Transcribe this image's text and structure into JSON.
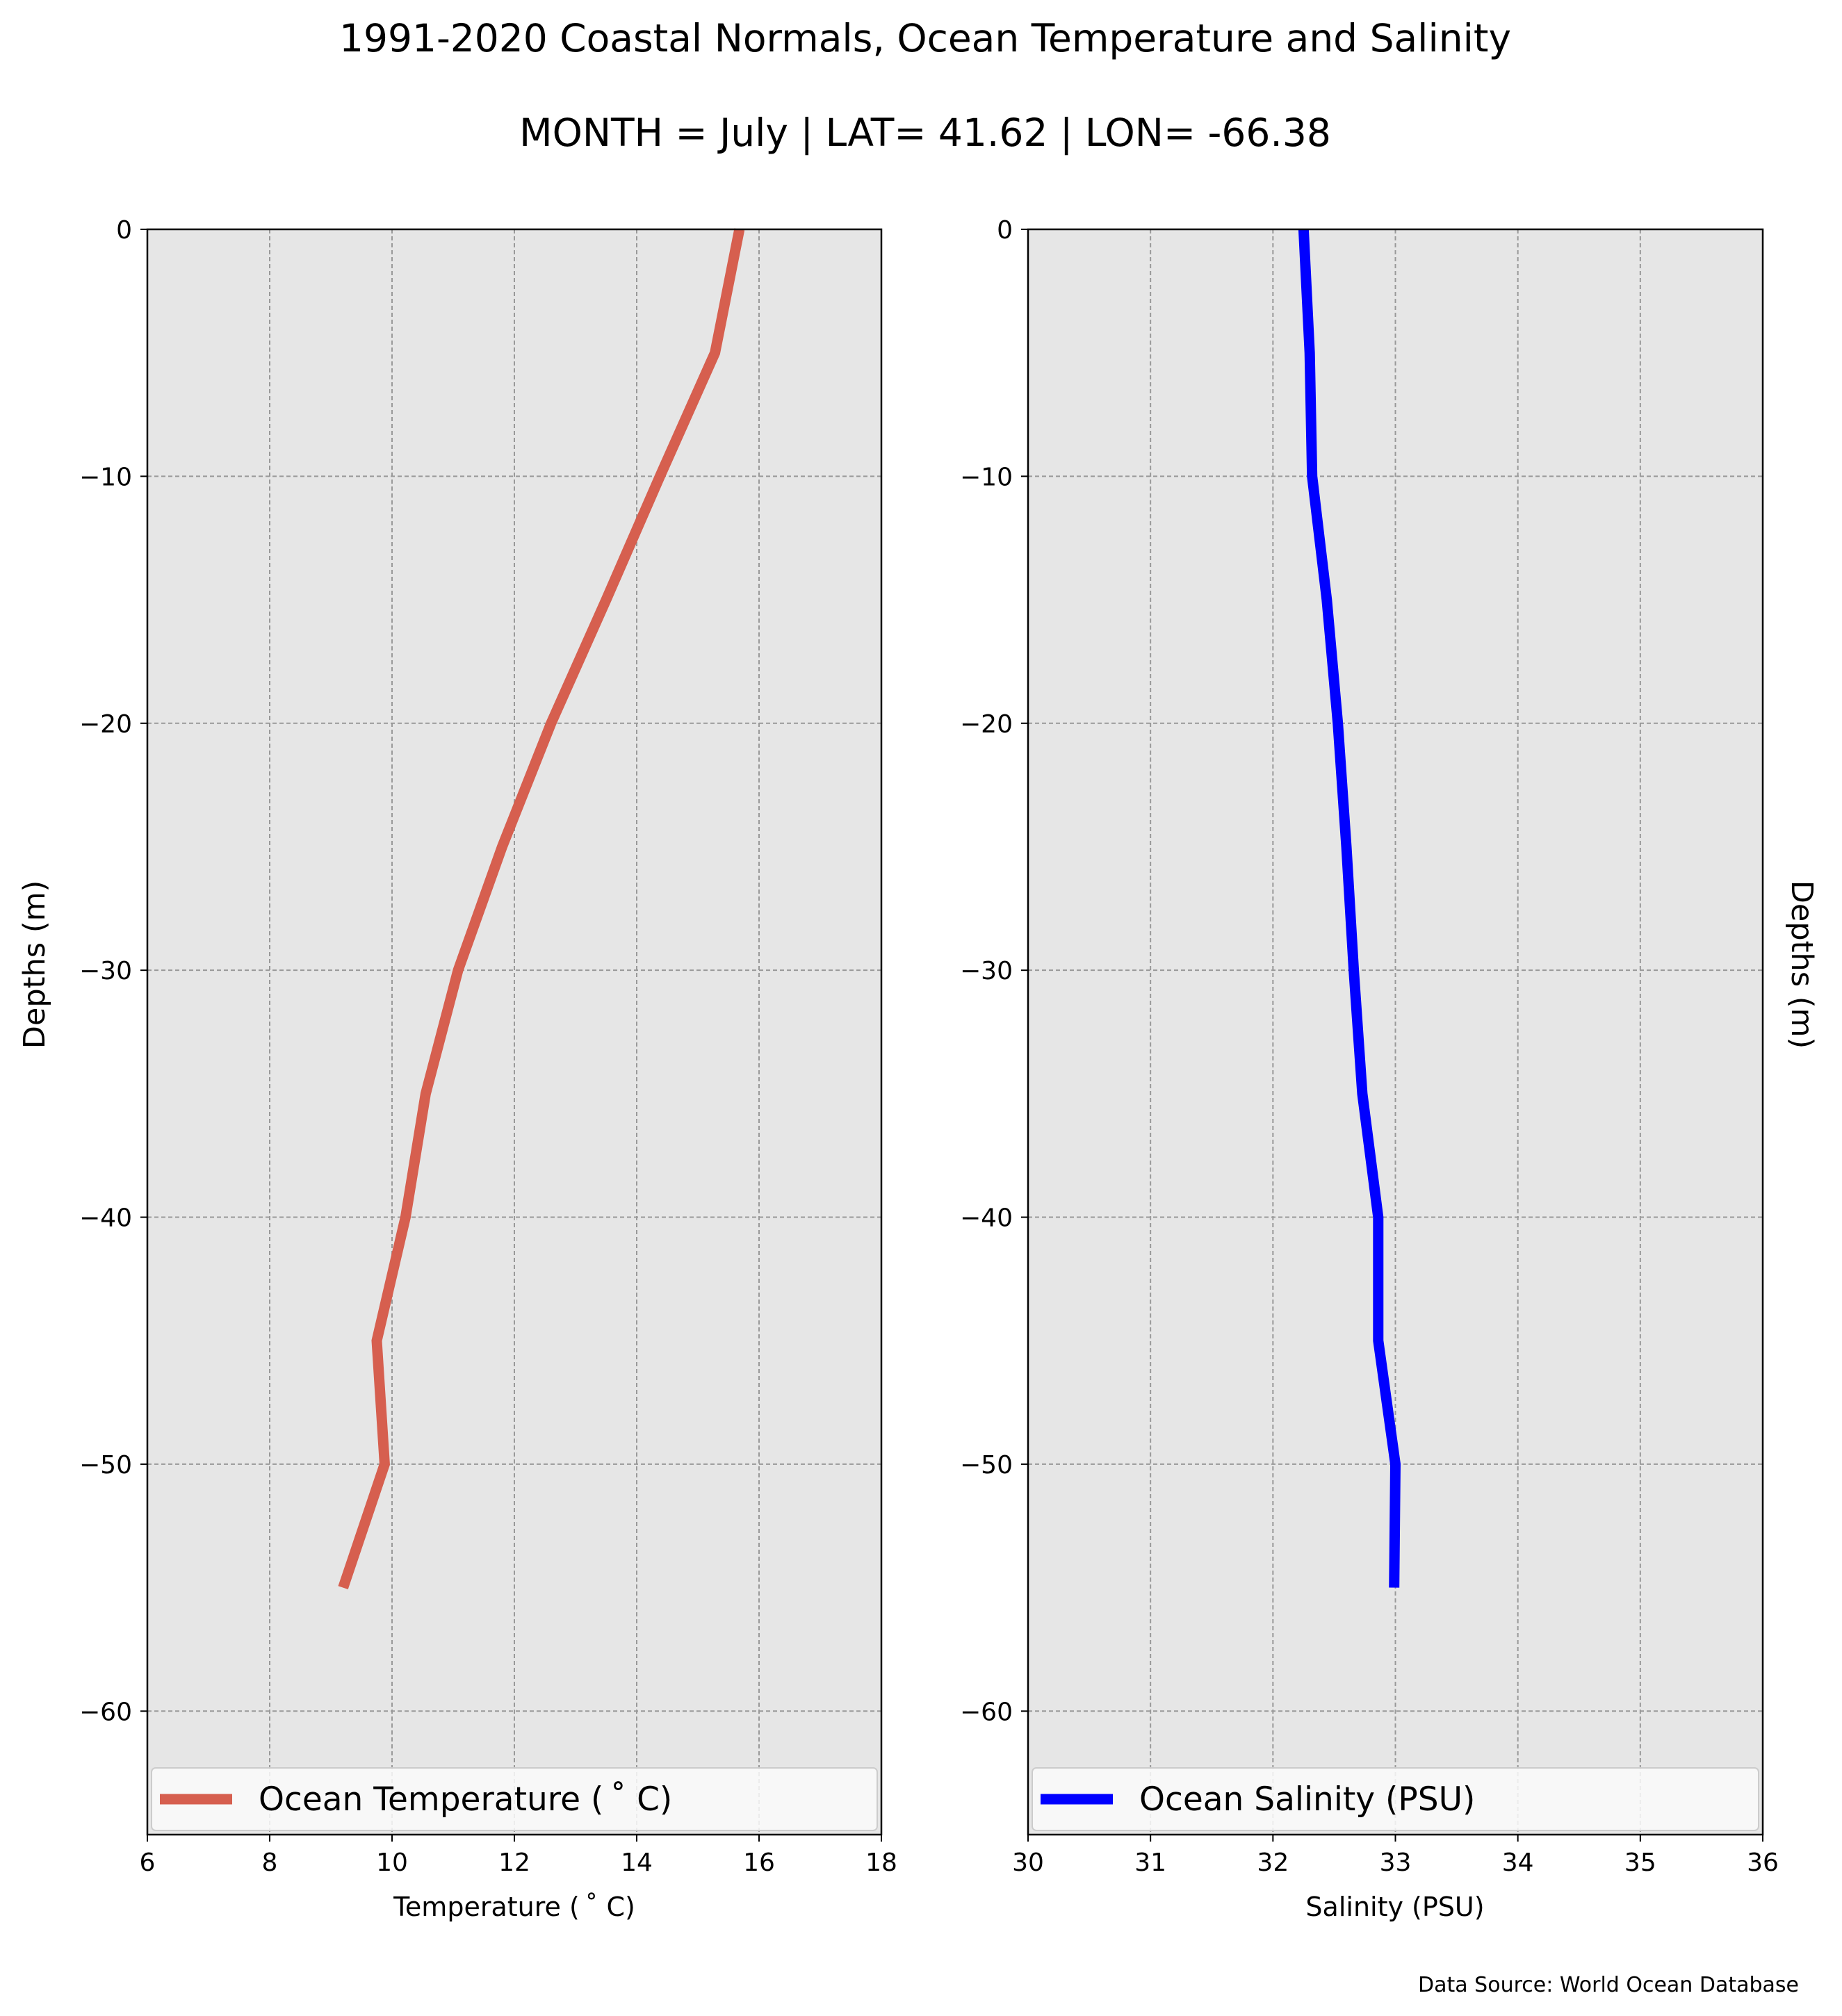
{
  "title": "1991-2020 Coastal Normals, Ocean Temperature and Salinity",
  "subtitle": "MONTH = July | LAT= 41.62 | LON= -66.38",
  "source": "Data Source: World Ocean Database",
  "colors": {
    "temperature": "#d65f4f",
    "salinity": "#0000ff",
    "plot_bg": "#e6e6e6",
    "grid": "#999999"
  },
  "chart_data": [
    {
      "type": "line",
      "xlabel": "Temperature ($^\\circ$C)",
      "xlabel_display": "Temperature ( ˚ C)",
      "ylabel": "Depths (m)",
      "xlim": [
        6,
        18
      ],
      "ylim": [
        -65,
        0
      ],
      "xticks": [
        "6",
        "8",
        "10",
        "12",
        "14",
        "16",
        "18"
      ],
      "yticks": [
        "0",
        "−10",
        "−20",
        "−30",
        "−40",
        "−50",
        "−60"
      ],
      "grid": true,
      "legend_placement": "bottom-stretch",
      "series": [
        {
          "name": "Ocean Temperature ( ˚ C)",
          "color": "#d65f4f",
          "x": [
            15.68,
            15.28,
            14.38,
            13.5,
            12.6,
            11.8,
            11.08,
            10.55,
            10.22,
            9.75,
            9.88,
            9.2
          ],
          "y": [
            0,
            -5,
            -10,
            -15,
            -20,
            -25,
            -30,
            -35,
            -40,
            -45,
            -50,
            -55
          ]
        }
      ]
    },
    {
      "type": "line",
      "xlabel": "Salinity (PSU)",
      "ylabel": "Depths (m)",
      "ylabel_side": "right",
      "xlim": [
        30,
        36
      ],
      "ylim": [
        -65,
        0
      ],
      "xticks": [
        "30",
        "31",
        "32",
        "33",
        "34",
        "35",
        "36"
      ],
      "yticks": [
        "0",
        "−10",
        "−20",
        "−30",
        "−40",
        "−50",
        "−60"
      ],
      "grid": true,
      "legend_placement": "bottom-stretch",
      "series": [
        {
          "name": "Ocean Salinity (PSU)",
          "color": "#0000ff",
          "x": [
            32.25,
            32.3,
            32.32,
            32.44,
            32.53,
            32.6,
            32.66,
            32.73,
            32.86,
            32.86,
            33.0,
            32.99
          ],
          "y": [
            0,
            -5,
            -10,
            -15,
            -20,
            -25,
            -30,
            -35,
            -40,
            -45,
            -50,
            -55
          ]
        }
      ]
    }
  ]
}
